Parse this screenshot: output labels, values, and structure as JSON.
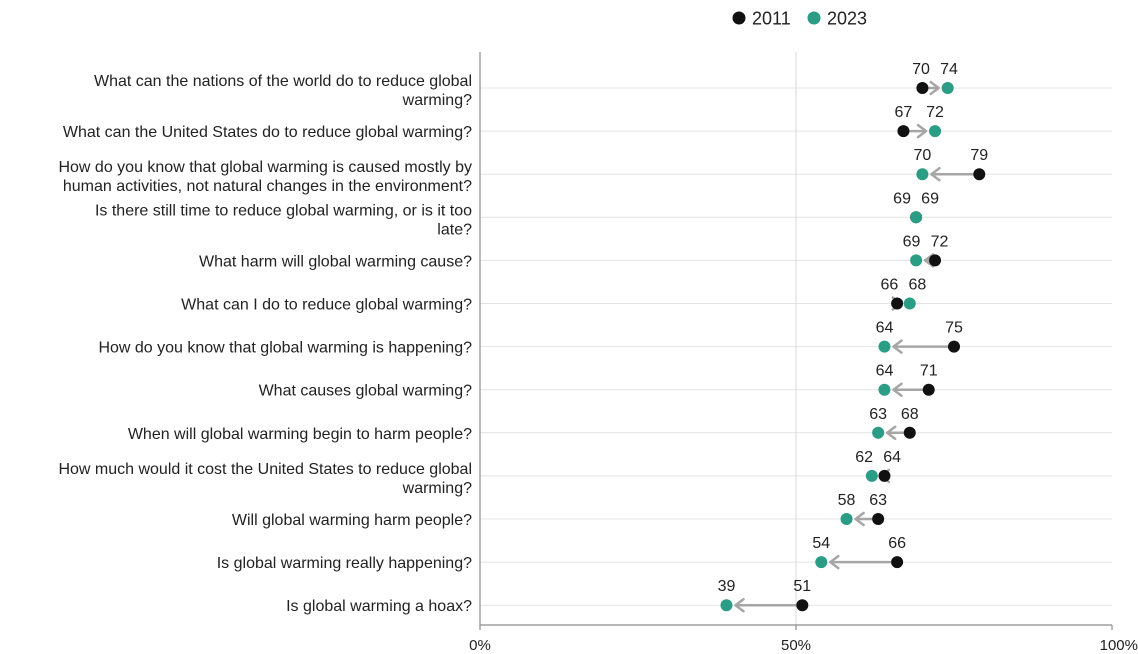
{
  "chart_data": {
    "type": "dumbbell",
    "categories": [
      "What can the nations of the world do to reduce global warming?",
      "What can the United States do to reduce global warming?",
      "How do you know that global warming is caused mostly by human activities, not natural changes in the environment?",
      "Is there still time to reduce global warming, or is it too late?",
      "What harm will global warming cause?",
      "What can I do to reduce global warming?",
      "How do you know that global warming is happening?",
      "What causes global warming?",
      "When will global warming begin to harm people?",
      "How much would it cost the United States to reduce global warming?",
      "Will global warming harm people?",
      "Is global warming really happening?",
      "Is global warming a hoax?"
    ],
    "category_lines": [
      [
        "What can the nations of the world do to reduce global",
        "warming?"
      ],
      [
        "What can the United States do to reduce global warming?"
      ],
      [
        "How do you know that global warming is caused mostly by",
        "human activities, not natural changes in the environment?"
      ],
      [
        "Is there still time to reduce global warming, or is it too",
        "late?"
      ],
      [
        "What harm will global warming cause?"
      ],
      [
        "What can I do to reduce global warming?"
      ],
      [
        "How do you know that global warming is happening?"
      ],
      [
        "What causes global warming?"
      ],
      [
        "When will global warming begin to harm people?"
      ],
      [
        "How much would it cost the United States to reduce global",
        "warming?"
      ],
      [
        "Will global warming harm people?"
      ],
      [
        "Is global warming really happening?"
      ],
      [
        "Is global warming a hoax?"
      ]
    ],
    "series": [
      {
        "name": "2011",
        "color": "#111111",
        "values": [
          70,
          67,
          79,
          69,
          72,
          66,
          75,
          71,
          68,
          64,
          63,
          66,
          51
        ]
      },
      {
        "name": "2023",
        "color": "#2a9d84",
        "values": [
          74,
          72,
          70,
          69,
          69,
          68,
          64,
          64,
          63,
          62,
          58,
          54,
          39
        ]
      }
    ],
    "xlim": [
      0,
      100
    ],
    "xticks": [
      0,
      50,
      100
    ],
    "xtick_labels": [
      "0%",
      "50%",
      "100%"
    ],
    "arrow_color": "#a6a6a6",
    "legend_position": "top"
  }
}
